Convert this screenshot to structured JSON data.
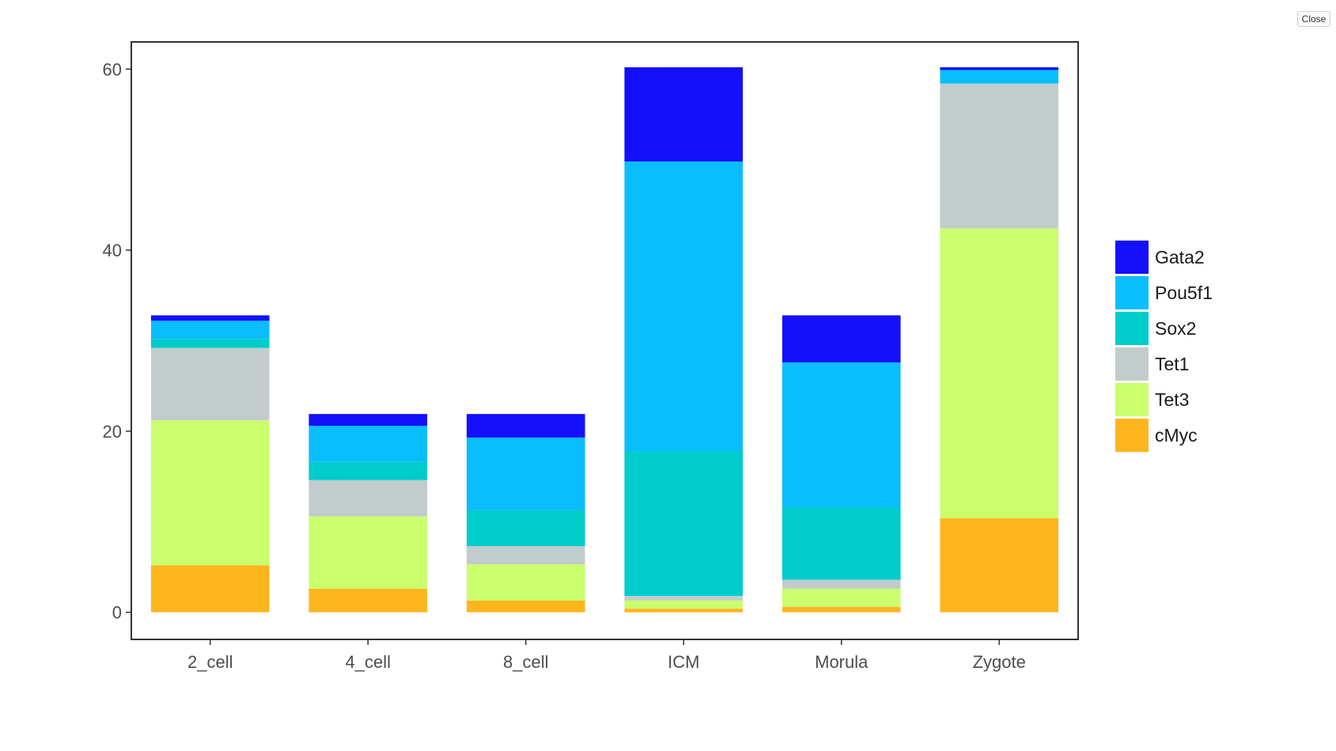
{
  "close_label": "Close",
  "chart_data": {
    "type": "bar",
    "stacked": true,
    "categories": [
      "2_cell",
      "4_cell",
      "8_cell",
      "ICM",
      "Morula",
      "Zygote"
    ],
    "series": [
      {
        "name": "cMyc",
        "color": "#FDB51E",
        "values": [
          5.2,
          2.6,
          1.3,
          0.4,
          0.6,
          10.4
        ]
      },
      {
        "name": "Tet3",
        "color": "#CAFE6D",
        "values": [
          16.0,
          8.0,
          4.0,
          0.9,
          2.0,
          32.0
        ]
      },
      {
        "name": "Tet1",
        "color": "#C2CCCC",
        "values": [
          8.0,
          4.0,
          2.0,
          0.5,
          1.0,
          16.0
        ]
      },
      {
        "name": "Sox2",
        "color": "#00CCCC",
        "values": [
          1.0,
          2.0,
          4.0,
          16.0,
          8.0,
          0.0
        ]
      },
      {
        "name": "Pou5f1",
        "color": "#0ABDFD",
        "values": [
          2.0,
          4.0,
          8.0,
          32.0,
          16.0,
          1.5
        ]
      },
      {
        "name": "Gata2",
        "color": "#1410FC",
        "values": [
          0.6,
          1.3,
          2.6,
          10.4,
          5.2,
          0.3
        ]
      }
    ],
    "legend_order": [
      "Gata2",
      "Pou5f1",
      "Sox2",
      "Tet1",
      "Tet3",
      "cMyc"
    ],
    "legend_position": "right",
    "yticks": [
      0,
      20,
      40,
      60
    ],
    "ylim": [
      -3,
      63
    ],
    "title": "",
    "xlabel": "",
    "ylabel": "",
    "grid": false
  }
}
